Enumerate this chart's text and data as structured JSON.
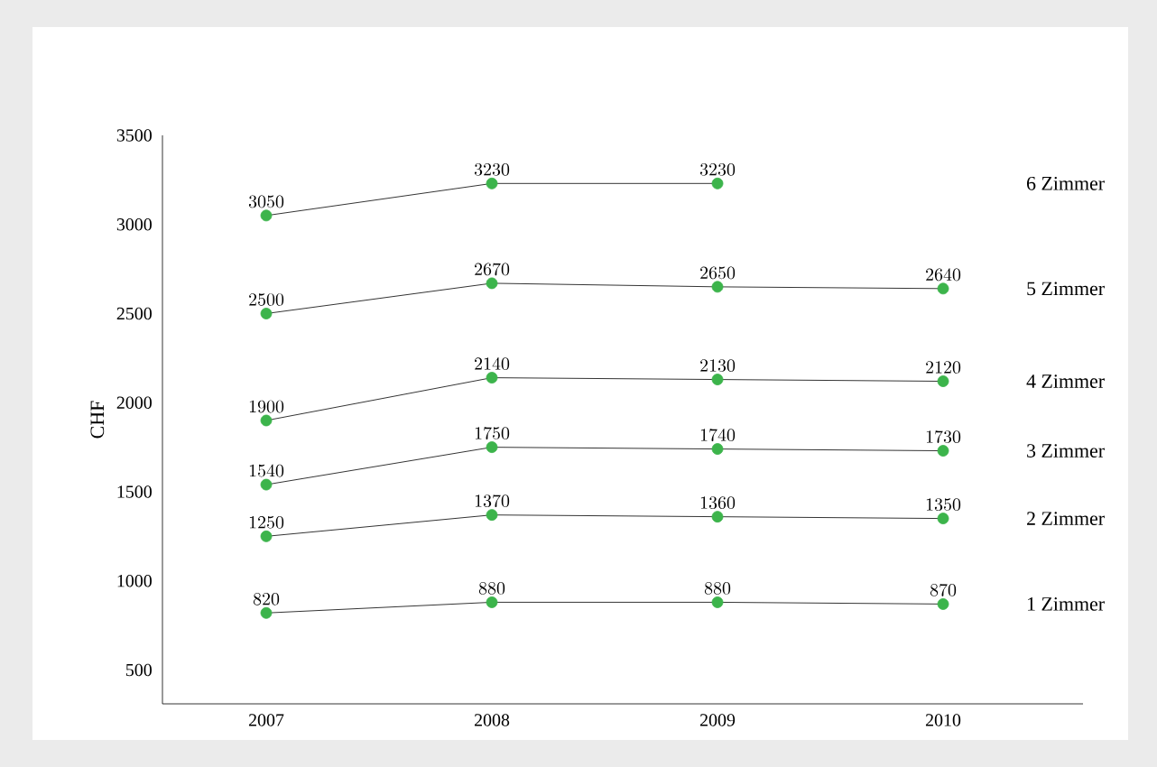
{
  "chart_data": {
    "type": "line",
    "ylabel": "CHF",
    "categories": [
      "2007",
      "2008",
      "2009",
      "2010"
    ],
    "series": [
      {
        "name": "6 Zimmer",
        "color": "#3cb44b",
        "values": [
          3050,
          3230,
          3230,
          null
        ]
      },
      {
        "name": "5 Zimmer",
        "color": "#3cb44b",
        "values": [
          2500,
          2670,
          2650,
          2640
        ]
      },
      {
        "name": "4 Zimmer",
        "color": "#3cb44b",
        "values": [
          1900,
          2140,
          2130,
          2120
        ]
      },
      {
        "name": "3 Zimmer",
        "color": "#3cb44b",
        "values": [
          1540,
          1750,
          1740,
          1730
        ]
      },
      {
        "name": "2 Zimmer",
        "color": "#3cb44b",
        "values": [
          1250,
          1370,
          1360,
          1350
        ]
      },
      {
        "name": "1 Zimmer",
        "color": "#3cb44b",
        "values": [
          820,
          880,
          880,
          870
        ]
      }
    ],
    "ylim": [
      310,
      3500
    ],
    "yticks": [
      500,
      1000,
      1500,
      2000,
      2500,
      3000,
      3500
    ],
    "marker": "circle",
    "line_style": "solid",
    "data_labels": true,
    "grid": false,
    "legend": false
  }
}
